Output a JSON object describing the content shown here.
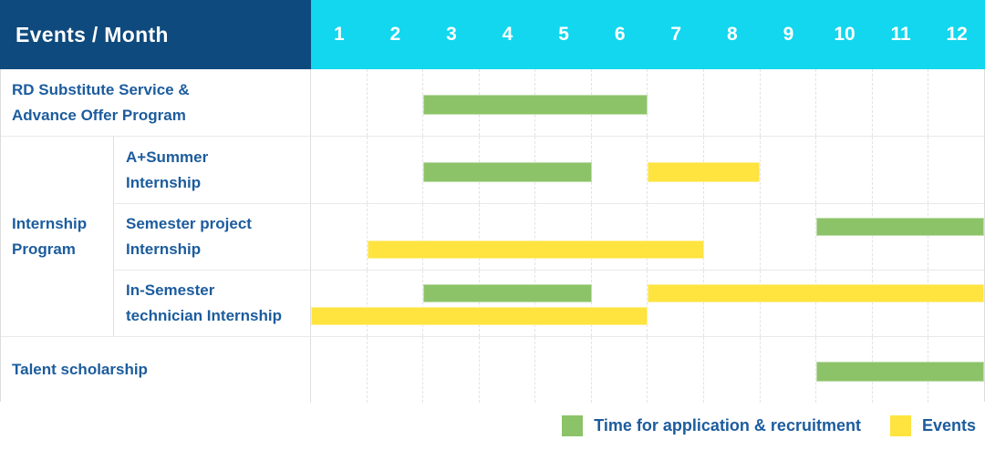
{
  "colors": {
    "header_bg": "#0E4A7D",
    "month_header_bg": "#12D7EE",
    "label_text": "#1C5C9D",
    "application_bar": "#8CC368",
    "events_bar": "#FFE33F",
    "grid_line": "#E3E3E3"
  },
  "chart_data": {
    "type": "gantt",
    "title": "Events / Month",
    "x_unit": "month",
    "x_ticks": [
      "1",
      "2",
      "3",
      "4",
      "5",
      "6",
      "7",
      "8",
      "9",
      "10",
      "11",
      "12"
    ],
    "x_range": [
      1,
      12
    ],
    "grid": true,
    "legend_position": "bottom-right",
    "series": [
      {
        "id": "application",
        "label": "Time for application & recruitment",
        "color": "#8CC368"
      },
      {
        "id": "events",
        "label": "Events",
        "color": "#FFE33F"
      }
    ],
    "rows": [
      {
        "group": "",
        "label": "RD Substitute Service & Advance Offer Program",
        "label_lines": [
          "RD Substitute Service &",
          "Advance Offer Program"
        ],
        "bar_lines": [
          [
            {
              "series": "application",
              "start_month": 3,
              "end_month": 6
            }
          ]
        ]
      },
      {
        "group": "Internship Program",
        "label": "A+Summer Internship",
        "label_lines": [
          "A+Summer",
          "Internship"
        ],
        "bar_lines": [
          [
            {
              "series": "application",
              "start_month": 3,
              "end_month": 5
            },
            {
              "series": "events",
              "start_month": 7,
              "end_month": 8
            }
          ]
        ]
      },
      {
        "group": "Internship Program",
        "label": "Semester project Internship",
        "label_lines": [
          "Semester project",
          "Internship"
        ],
        "bar_lines": [
          [
            {
              "series": "application",
              "start_month": 10,
              "end_month": 12
            }
          ],
          [
            {
              "series": "events",
              "start_month": 2,
              "end_month": 7
            }
          ]
        ]
      },
      {
        "group": "Internship Program",
        "label": "In-Semester technician Internship",
        "label_lines": [
          "In-Semester",
          "technician Internship"
        ],
        "bar_lines": [
          [
            {
              "series": "application",
              "start_month": 3,
              "end_month": 5
            },
            {
              "series": "events",
              "start_month": 7,
              "end_month": 12
            }
          ],
          [
            {
              "series": "events",
              "start_month": 1,
              "end_month": 6
            }
          ]
        ]
      },
      {
        "group": "",
        "label": "Talent scholarship",
        "label_lines": [
          "Talent scholarship"
        ],
        "bar_lines": [
          [
            {
              "series": "application",
              "start_month": 10,
              "end_month": 12
            }
          ]
        ]
      }
    ],
    "group_label_lines": [
      "Internship",
      "Program"
    ]
  },
  "legend": {
    "items": [
      {
        "label": "Time for application & recruitment",
        "color": "#8CC368"
      },
      {
        "label": "Events",
        "color": "#FFE33F"
      }
    ]
  }
}
